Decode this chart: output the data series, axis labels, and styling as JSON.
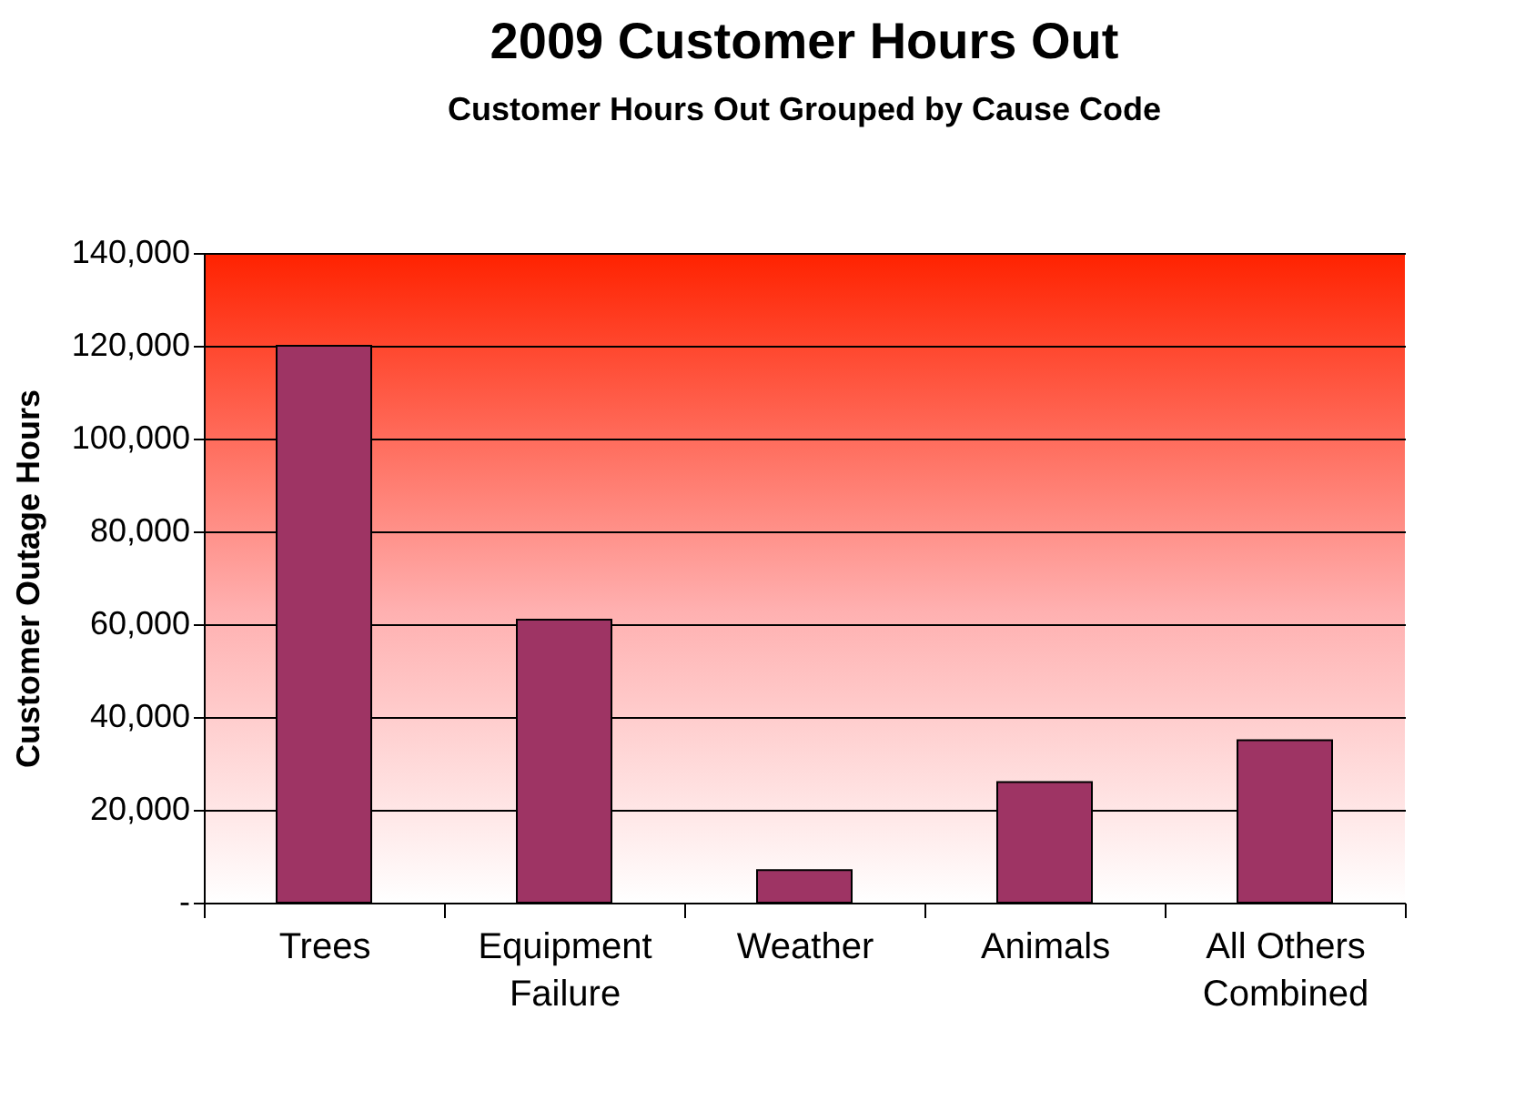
{
  "chart_data": {
    "type": "bar",
    "title": "2009 Customer Hours Out",
    "subtitle": "Customer Hours Out Grouped by Cause Code",
    "ylabel": "Customer Outage Hours",
    "categories": [
      "Trees",
      "Equipment Failure",
      "Weather",
      "Animals",
      "All Others Combined"
    ],
    "values": [
      120000,
      61000,
      7000,
      26000,
      35000
    ],
    "color": "#9e3464",
    "ylim": [
      0,
      140000
    ],
    "yticks": [
      {
        "value": 0,
        "label": "-"
      },
      {
        "value": 20000,
        "label": "20,000"
      },
      {
        "value": 40000,
        "label": "40,000"
      },
      {
        "value": 60000,
        "label": "60,000"
      },
      {
        "value": 80000,
        "label": "80,000"
      },
      {
        "value": 100000,
        "label": "100,000"
      },
      {
        "value": 120000,
        "label": "120,000"
      },
      {
        "value": 140000,
        "label": "140,000"
      }
    ],
    "grid": "y"
  }
}
